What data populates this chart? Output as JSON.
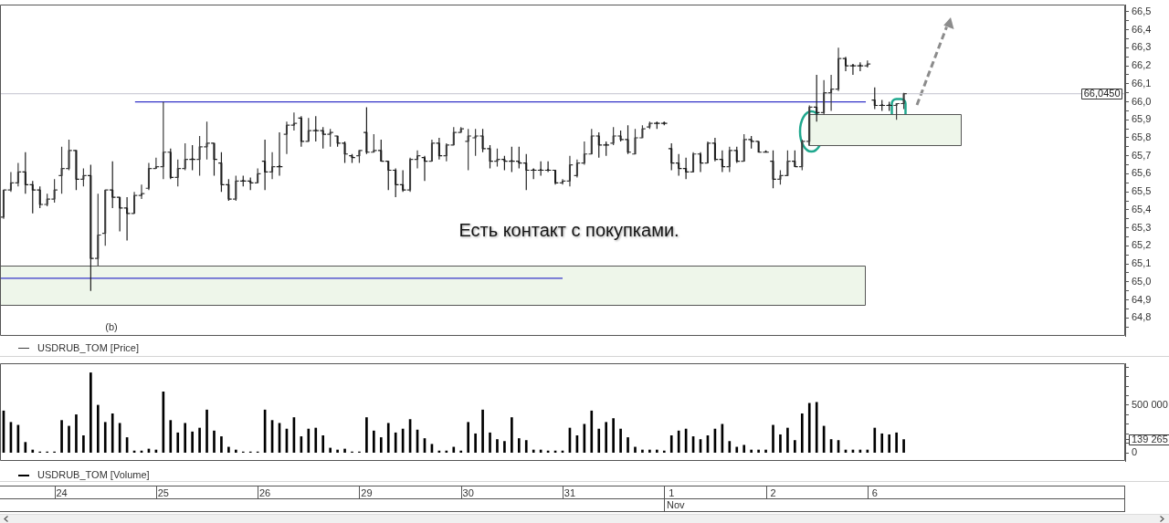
{
  "chart_data": [
    {
      "type": "candlestick",
      "categories": [
        null,
        null,
        null,
        null,
        null,
        null,
        null,
        null,
        "24",
        null,
        null,
        null,
        null,
        null,
        null,
        null,
        null,
        null,
        null,
        null,
        null,
        null,
        "25",
        null,
        null,
        null,
        null,
        null,
        null,
        null,
        null,
        null,
        null,
        null,
        null,
        null,
        "26",
        null,
        null,
        null,
        null,
        null,
        null,
        null,
        null,
        null,
        null,
        null,
        null,
        null,
        "29",
        null,
        null,
        null,
        null,
        null,
        null,
        null,
        null,
        null,
        null,
        null,
        null,
        null,
        "30",
        null,
        null,
        null,
        null,
        null,
        null,
        null,
        null,
        null,
        null,
        null,
        null,
        null,
        "31",
        null,
        null,
        null,
        null,
        null,
        null,
        null,
        null,
        null,
        null,
        null,
        null,
        null,
        "1",
        null,
        null,
        null,
        null,
        null,
        null,
        null,
        null,
        null,
        null,
        null,
        null,
        null,
        "2",
        null,
        null,
        null,
        null,
        null,
        null,
        null,
        null,
        null,
        null,
        null,
        null,
        null,
        "6",
        null,
        null,
        null,
        null,
        null,
        null,
        null,
        null,
        null,
        null,
        null,
        null,
        null,
        null,
        null,
        null,
        null,
        null,
        null,
        null,
        null,
        null,
        null,
        null,
        null,
        null,
        null,
        null,
        null,
        null,
        null,
        null,
        null,
        null
      ],
      "series": [
        {
          "name": "USDRUB_TOM [Price]",
          "color": "#3c3c3c",
          "ohlc": [
            [
              65.36,
              65.51,
              65.35,
              65.51
            ],
            [
              65.51,
              65.61,
              65.5,
              65.55
            ],
            [
              65.55,
              65.66,
              65.53,
              65.61
            ],
            [
              65.61,
              65.72,
              65.49,
              65.54
            ],
            [
              65.54,
              65.56,
              65.38,
              65.51
            ],
            [
              65.51,
              65.53,
              65.41,
              65.43
            ],
            [
              65.43,
              65.49,
              65.42,
              65.46
            ],
            [
              65.46,
              65.57,
              65.44,
              65.51
            ],
            [
              65.59,
              65.75,
              65.49,
              65.63
            ],
            [
              65.63,
              65.79,
              65.62,
              65.73
            ],
            [
              65.73,
              65.73,
              65.51,
              65.57
            ],
            [
              65.57,
              65.63,
              65.53,
              65.59
            ],
            [
              65.59,
              65.65,
              64.95,
              65.13
            ],
            [
              65.13,
              65.49,
              65.09,
              65.26
            ],
            [
              65.27,
              65.51,
              65.2,
              65.51
            ],
            [
              65.51,
              65.67,
              65.41,
              65.47
            ],
            [
              65.47,
              65.47,
              65.28,
              65.41
            ],
            [
              65.41,
              65.47,
              65.23,
              65.38
            ],
            [
              65.38,
              65.5,
              65.38,
              65.48
            ],
            [
              65.48,
              65.54,
              65.46,
              65.49
            ],
            [
              65.52,
              65.66,
              65.51,
              65.63
            ],
            [
              65.63,
              65.69,
              65.63,
              65.64
            ],
            [
              65.64,
              66.0,
              65.57,
              65.72
            ],
            [
              65.72,
              65.74,
              65.57,
              65.58
            ],
            [
              65.58,
              65.68,
              65.53,
              65.63
            ],
            [
              65.63,
              65.77,
              65.62,
              65.68
            ],
            [
              65.68,
              65.76,
              65.62,
              65.68
            ],
            [
              65.68,
              65.81,
              65.59,
              65.75
            ],
            [
              65.75,
              65.89,
              65.68,
              65.77
            ],
            [
              65.77,
              65.77,
              65.59,
              65.68
            ],
            [
              65.66,
              65.72,
              65.5,
              65.54
            ],
            [
              65.54,
              65.57,
              65.45,
              65.46
            ],
            [
              65.46,
              65.59,
              65.45,
              65.56
            ],
            [
              65.56,
              65.59,
              65.53,
              65.56
            ],
            [
              65.56,
              65.58,
              65.51,
              65.55
            ],
            [
              65.55,
              65.63,
              65.55,
              65.6
            ],
            [
              65.67,
              65.79,
              65.51,
              65.61
            ],
            [
              65.61,
              65.72,
              65.57,
              65.64
            ],
            [
              65.64,
              65.83,
              65.59,
              65.64
            ],
            [
              65.82,
              65.89,
              65.71,
              65.87
            ],
            [
              65.87,
              65.94,
              65.84,
              65.88
            ],
            [
              65.91,
              65.92,
              65.75,
              65.78
            ],
            [
              65.78,
              65.91,
              65.78,
              65.84
            ],
            [
              65.84,
              65.92,
              65.78,
              65.84
            ],
            [
              65.84,
              65.86,
              65.74,
              65.82
            ],
            [
              65.82,
              65.85,
              65.75,
              65.83
            ],
            [
              65.81,
              65.81,
              65.75,
              65.77
            ],
            [
              65.77,
              65.78,
              65.66,
              65.71
            ],
            [
              65.7,
              65.71,
              65.66,
              65.69
            ],
            [
              65.7,
              65.73,
              65.66,
              65.73
            ],
            [
              65.83,
              65.97,
              65.71,
              65.72
            ],
            [
              65.72,
              65.82,
              65.72,
              65.73
            ],
            [
              65.73,
              65.79,
              65.67,
              65.67
            ],
            [
              65.67,
              65.67,
              65.51,
              65.62
            ],
            [
              65.62,
              65.63,
              65.47,
              65.54
            ],
            [
              65.54,
              65.62,
              65.5,
              65.51
            ],
            [
              65.51,
              65.69,
              65.5,
              65.68
            ],
            [
              65.68,
              65.73,
              65.63,
              65.7
            ],
            [
              65.69,
              65.7,
              65.56,
              65.67
            ],
            [
              65.67,
              65.79,
              65.67,
              65.77
            ],
            [
              65.77,
              65.8,
              65.68,
              65.7
            ],
            [
              65.7,
              65.77,
              65.67,
              65.76
            ],
            [
              65.76,
              65.86,
              65.76,
              65.83
            ],
            [
              65.83,
              65.86,
              65.83,
              65.85
            ],
            [
              65.78,
              65.85,
              65.62,
              65.81
            ],
            [
              65.8,
              65.85,
              65.7,
              65.81
            ],
            [
              65.81,
              65.85,
              65.72,
              65.74
            ],
            [
              65.74,
              65.76,
              65.63,
              65.67
            ],
            [
              65.67,
              65.74,
              65.64,
              65.68
            ],
            [
              65.68,
              65.7,
              65.62,
              65.67
            ],
            [
              65.67,
              65.75,
              65.61,
              65.67
            ],
            [
              65.67,
              65.75,
              65.63,
              65.66
            ],
            [
              65.66,
              65.71,
              65.51,
              65.62
            ],
            [
              65.62,
              65.63,
              65.57,
              65.62
            ],
            [
              65.62,
              65.67,
              65.59,
              65.62
            ],
            [
              65.62,
              65.67,
              65.61,
              65.62
            ],
            [
              65.62,
              65.62,
              65.54,
              65.55
            ],
            [
              65.55,
              65.57,
              65.54,
              65.56
            ],
            [
              65.56,
              65.7,
              65.53,
              65.65
            ],
            [
              65.59,
              65.68,
              65.58,
              65.66
            ],
            [
              65.66,
              65.78,
              65.65,
              65.71
            ],
            [
              65.71,
              65.85,
              65.71,
              65.81
            ],
            [
              65.81,
              65.83,
              65.69,
              65.76
            ],
            [
              65.76,
              65.78,
              65.7,
              65.76
            ],
            [
              65.77,
              65.86,
              65.76,
              65.81
            ],
            [
              65.81,
              65.84,
              65.78,
              65.79
            ],
            [
              65.79,
              65.87,
              65.71,
              65.72
            ],
            [
              65.71,
              65.85,
              65.71,
              65.8
            ],
            [
              65.8,
              65.87,
              65.8,
              65.85
            ],
            [
              65.86,
              65.89,
              65.85,
              65.88
            ],
            [
              65.88,
              65.89,
              65.85,
              65.88
            ],
            [
              65.88,
              65.89,
              65.87,
              65.88
            ],
            [
              65.74,
              65.77,
              65.62,
              65.66
            ],
            [
              65.66,
              65.71,
              65.59,
              65.63
            ],
            [
              65.63,
              65.69,
              65.57,
              65.61
            ],
            [
              65.61,
              65.72,
              65.61,
              65.71
            ],
            [
              65.71,
              65.72,
              65.61,
              65.66
            ],
            [
              65.66,
              65.78,
              65.66,
              65.77
            ],
            [
              65.77,
              65.8,
              65.67,
              65.68
            ],
            [
              65.68,
              65.73,
              65.61,
              65.64
            ],
            [
              65.64,
              65.75,
              65.61,
              65.73
            ],
            [
              65.73,
              65.75,
              65.66,
              65.67
            ],
            [
              65.67,
              65.82,
              65.67,
              65.79
            ],
            [
              65.79,
              65.81,
              65.74,
              65.78
            ],
            [
              65.78,
              65.78,
              65.72,
              65.72
            ],
            [
              65.72,
              65.73,
              65.72,
              65.72
            ],
            [
              65.67,
              65.73,
              65.52,
              65.57
            ],
            [
              65.57,
              65.62,
              65.54,
              65.59
            ],
            [
              65.59,
              65.73,
              65.59,
              65.67
            ],
            [
              65.67,
              65.73,
              65.64,
              65.64
            ],
            [
              65.64,
              65.79,
              65.62,
              65.78
            ],
            [
              65.78,
              65.98,
              65.76,
              65.97
            ],
            [
              65.97,
              66.15,
              65.89,
              65.94
            ],
            [
              65.94,
              66.12,
              65.93,
              66.05
            ],
            [
              66.05,
              66.15,
              65.95,
              66.07
            ],
            [
              66.07,
              66.3,
              66.06,
              66.24
            ],
            [
              66.24,
              66.25,
              66.17,
              66.2
            ],
            [
              66.2,
              66.21,
              66.15,
              66.2
            ],
            [
              66.2,
              66.22,
              66.17,
              66.2
            ],
            [
              66.2,
              66.23,
              66.19,
              66.21
            ],
            [
              66.01,
              66.08,
              65.96,
              65.98
            ],
            [
              65.98,
              66.01,
              65.95,
              65.98
            ],
            [
              65.98,
              66.0,
              65.95,
              65.98
            ],
            [
              65.98,
              65.99,
              65.9,
              65.99
            ],
            [
              65.99,
              66.05,
              65.96,
              66.045
            ],
            null,
            null,
            null,
            null,
            null,
            null,
            null,
            null,
            null,
            null,
            null,
            null,
            null,
            null,
            null,
            null,
            null,
            null,
            null,
            null,
            null,
            null,
            null,
            null,
            null,
            null,
            null,
            null,
            null,
            null
          ],
          "colors": [
            "#3c3c3c",
            "#3c3c3c",
            "#3c3c3c",
            "#1e1e1e",
            "#1e1e1e",
            "#1e1e1e",
            "#3c3c3c",
            "#3c3c3c",
            "#3c3c3c",
            "#3c3c3c",
            "#1e1e1e",
            "#3c3c3c",
            "#1e1e1e",
            "#3c3c3c",
            "#3c3c3c",
            "#1e1e1e",
            "#1e1e1e",
            "#1e1e1e",
            "#3c3c3c",
            "#3c3c3c",
            "#3c3c3c",
            "#3c3c3c",
            "#3c3c3c",
            "#1e1e1e",
            "#3c3c3c",
            "#3c3c3c",
            "#1e1e1e",
            "#3c3c3c",
            "#3c3c3c",
            "#1e1e1e",
            "#1e1e1e",
            "#1e1e1e",
            "#3c3c3c",
            "#1e1e1e",
            "#1e1e1e",
            "#3c3c3c",
            "#1e1e1e",
            "#3c3c3c",
            "#1e1e1e",
            "#3c3c3c",
            "#3c3c3c",
            "#1e1e1e",
            "#3c3c3c",
            "#1e1e1e",
            "#1e1e1e",
            "#3c3c3c",
            "#1e1e1e",
            "#1e1e1e",
            "#1e1e1e",
            "#3c3c3c",
            "#1e1e1e",
            "#3c3c3c",
            "#1e1e1e",
            "#1e1e1e",
            "#1e1e1e",
            "#1e1e1e",
            "#3c3c3c",
            "#3c3c3c",
            "#1e1e1e",
            "#3c3c3c",
            "#1e1e1e",
            "#3c3c3c",
            "#3c3c3c",
            "#3c3c3c",
            "#3c3c3c",
            "#3c3c3c",
            "#1e1e1e",
            "#1e1e1e",
            "#3c3c3c",
            "#1e1e1e",
            "#1e1e1e",
            "#1e1e1e",
            "#1e1e1e",
            "#1e1e1e",
            "#1e1e1e",
            "#1e1e1e",
            "#1e1e1e",
            "#3c3c3c",
            "#3c3c3c",
            "#3c3c3c",
            "#3c3c3c",
            "#3c3c3c",
            "#1e1e1e",
            "#1e1e1e",
            "#3c3c3c",
            "#1e1e1e",
            "#1e1e1e",
            "#3c3c3c",
            "#3c3c3c",
            "#3c3c3c",
            "#1e1e1e",
            "#1e1e1e",
            "#1e1e1e",
            "#1e1e1e",
            "#1e1e1e",
            "#3c3c3c",
            "#1e1e1e",
            "#3c3c3c",
            "#1e1e1e",
            "#1e1e1e",
            "#3c3c3c",
            "#1e1e1e",
            "#3c3c3c",
            "#1e1e1e",
            "#1e1e1e",
            "#1e1e1e",
            "#1e1e1e",
            "#3c3c3c",
            "#3c3c3c",
            "#1e1e1e",
            "#3c3c3c",
            "#3c3c3c",
            "#1e1e1e",
            "#3c3c3c",
            "#3c3c3c",
            "#3c3c3c",
            "#1e1e1e",
            "#1e1e1e",
            "#1e1e1e",
            "#3c3c3c",
            "#1e1e1e",
            "#1e1e1e",
            "#1e1e1e",
            "#3c3c3c",
            "#3c3c3c",
            null,
            null,
            null,
            null,
            null,
            null,
            null,
            null,
            null,
            null,
            null,
            null,
            null,
            null,
            null,
            null,
            null,
            null,
            null,
            null,
            null,
            null,
            null,
            null,
            null,
            null,
            null,
            null,
            null,
            null
          ]
        }
      ],
      "ylim": [
        64.7,
        66.54
      ],
      "yticks": [
        {
          "value": 64.75,
          "label": null
        },
        {
          "value": 64.8,
          "label": "64,8"
        },
        {
          "value": 64.85,
          "label": null
        },
        {
          "value": 64.9,
          "label": "64,9"
        },
        {
          "value": 64.95,
          "label": null
        },
        {
          "value": 65.0,
          "label": "65,0"
        },
        {
          "value": 65.05,
          "label": null
        },
        {
          "value": 65.1,
          "label": "65,1"
        },
        {
          "value": 65.15,
          "label": null
        },
        {
          "value": 65.2,
          "label": "65,2"
        },
        {
          "value": 65.25,
          "label": null
        },
        {
          "value": 65.3,
          "label": "65,3"
        },
        {
          "value": 65.35,
          "label": null
        },
        {
          "value": 65.4,
          "label": "65,4"
        },
        {
          "value": 65.45,
          "label": null
        },
        {
          "value": 65.5,
          "label": "65,5"
        },
        {
          "value": 65.55,
          "label": null
        },
        {
          "value": 65.6,
          "label": "65,6"
        },
        {
          "value": 65.65,
          "label": null
        },
        {
          "value": 65.7,
          "label": "65,7"
        },
        {
          "value": 65.75,
          "label": null
        },
        {
          "value": 65.8,
          "label": "65,8"
        },
        {
          "value": 65.85,
          "label": null
        },
        {
          "value": 65.9,
          "label": "65,9"
        },
        {
          "value": 65.95,
          "label": null
        },
        {
          "value": 66.0,
          "label": "66,0"
        },
        {
          "value": 66.05,
          "label": null
        },
        {
          "value": 66.1,
          "label": "66,1"
        },
        {
          "value": 66.15,
          "label": null
        },
        {
          "value": 66.2,
          "label": "66,2"
        },
        {
          "value": 66.25,
          "label": null
        },
        {
          "value": 66.3,
          "label": "66,3"
        },
        {
          "value": 66.35,
          "label": null
        },
        {
          "value": 66.4,
          "label": "66,4"
        },
        {
          "value": 66.45,
          "label": null
        },
        {
          "value": 66.5,
          "label": "66,5"
        }
      ],
      "tick_labels": "y",
      "legend": "bottom left",
      "ref_lines": [
        {
          "axis": "y",
          "value": 66.0,
          "color": "#3434c8"
        },
        {
          "axis": "y",
          "value": 65.02,
          "color": "#3434c8"
        },
        {
          "axis": "y",
          "value": 66.045,
          "label": "66,0450",
          "color": "#cfcfd8"
        }
      ],
      "bands": [
        {
          "axis": "y",
          "from": 65.76,
          "to": 65.93,
          "color": "#eef6ea"
        },
        {
          "axis": "y",
          "from": 64.87,
          "to": 65.09,
          "color": "#eef6ea"
        }
      ],
      "annotations": [
        "Есть контакт с покупками.",
        "(b)"
      ]
    },
    {
      "type": "bar",
      "categories": [
        null,
        null,
        null,
        null,
        null,
        null,
        null,
        null,
        "24",
        null,
        null,
        null,
        null,
        null,
        null,
        null,
        null,
        null,
        null,
        null,
        null,
        null,
        "25",
        null,
        null,
        null,
        null,
        null,
        null,
        null,
        null,
        null,
        null,
        null,
        null,
        null,
        "26",
        null,
        null,
        null,
        null,
        null,
        null,
        null,
        null,
        null,
        null,
        null,
        null,
        null,
        "29",
        null,
        null,
        null,
        null,
        null,
        null,
        null,
        null,
        null,
        null,
        null,
        null,
        null,
        "30",
        null,
        null,
        null,
        null,
        null,
        null,
        null,
        null,
        null,
        null,
        null,
        null,
        null,
        "31",
        null,
        null,
        null,
        null,
        null,
        null,
        null,
        null,
        null,
        null,
        null,
        null,
        null,
        "1",
        null,
        null,
        null,
        null,
        null,
        null,
        null,
        null,
        null,
        null,
        null,
        null,
        null,
        "2",
        null,
        null,
        null,
        null,
        null,
        null,
        null,
        null,
        null,
        null,
        null,
        null,
        null,
        "6",
        null,
        null,
        null,
        null,
        null,
        null,
        null,
        null,
        null,
        null,
        null,
        null,
        null,
        null,
        null,
        null,
        null,
        null,
        null,
        null,
        null,
        null,
        null,
        null,
        null,
        null,
        null,
        null,
        null,
        null,
        null,
        null,
        null,
        null
      ],
      "series": [
        {
          "name": "USDRUB_TOM [Volume]",
          "color": "#000000",
          "values": [
            440000,
            320000,
            290000,
            110000,
            30000,
            10000,
            10000,
            10000,
            340000,
            280000,
            400000,
            180000,
            840000,
            500000,
            320000,
            410000,
            310000,
            160000,
            20000,
            20000,
            40000,
            30000,
            640000,
            340000,
            210000,
            310000,
            220000,
            260000,
            450000,
            230000,
            170000,
            60000,
            30000,
            10000,
            10000,
            10000,
            450000,
            340000,
            310000,
            250000,
            370000,
            170000,
            250000,
            260000,
            180000,
            50000,
            30000,
            40000,
            10000,
            10000,
            370000,
            230000,
            160000,
            310000,
            210000,
            250000,
            350000,
            240000,
            150000,
            90000,
            20000,
            20000,
            60000,
            20000,
            320000,
            200000,
            450000,
            210000,
            140000,
            120000,
            370000,
            150000,
            130000,
            30000,
            30000,
            20000,
            20000,
            20000,
            260000,
            180000,
            300000,
            440000,
            250000,
            320000,
            360000,
            250000,
            160000,
            60000,
            30000,
            30000,
            30000,
            20000,
            180000,
            230000,
            250000,
            170000,
            140000,
            180000,
            250000,
            300000,
            120000,
            60000,
            80000,
            30000,
            30000,
            30000,
            290000,
            190000,
            260000,
            130000,
            410000,
            520000,
            530000,
            280000,
            140000,
            130000,
            30000,
            30000,
            30000,
            30000,
            260000,
            200000,
            190000,
            210000,
            139265,
            null,
            null,
            null,
            null,
            null,
            null,
            null,
            null,
            null,
            null,
            null,
            null,
            null,
            null,
            null,
            null,
            null,
            null,
            null,
            null,
            null,
            null,
            null,
            null,
            null,
            null,
            null,
            null,
            null,
            null
          ]
        }
      ],
      "ylim": [
        -85000,
        940000
      ],
      "yticks": [
        0,
        {
          "value": 100000,
          "label": null
        },
        {
          "value": 139265,
          "label": "139 265"
        },
        {
          "value": 200000,
          "label": null
        },
        {
          "value": 300000,
          "label": null
        },
        {
          "value": 400000,
          "label": null
        },
        {
          "value": 500000,
          "label": "500 000"
        },
        {
          "value": 600000,
          "label": null
        },
        {
          "value": 700000,
          "label": null
        },
        {
          "value": 800000,
          "label": null
        },
        {
          "value": 900000,
          "label": null
        }
      ],
      "legend": "bottom left",
      "annotations": [
        "Nov"
      ]
    }
  ]
}
